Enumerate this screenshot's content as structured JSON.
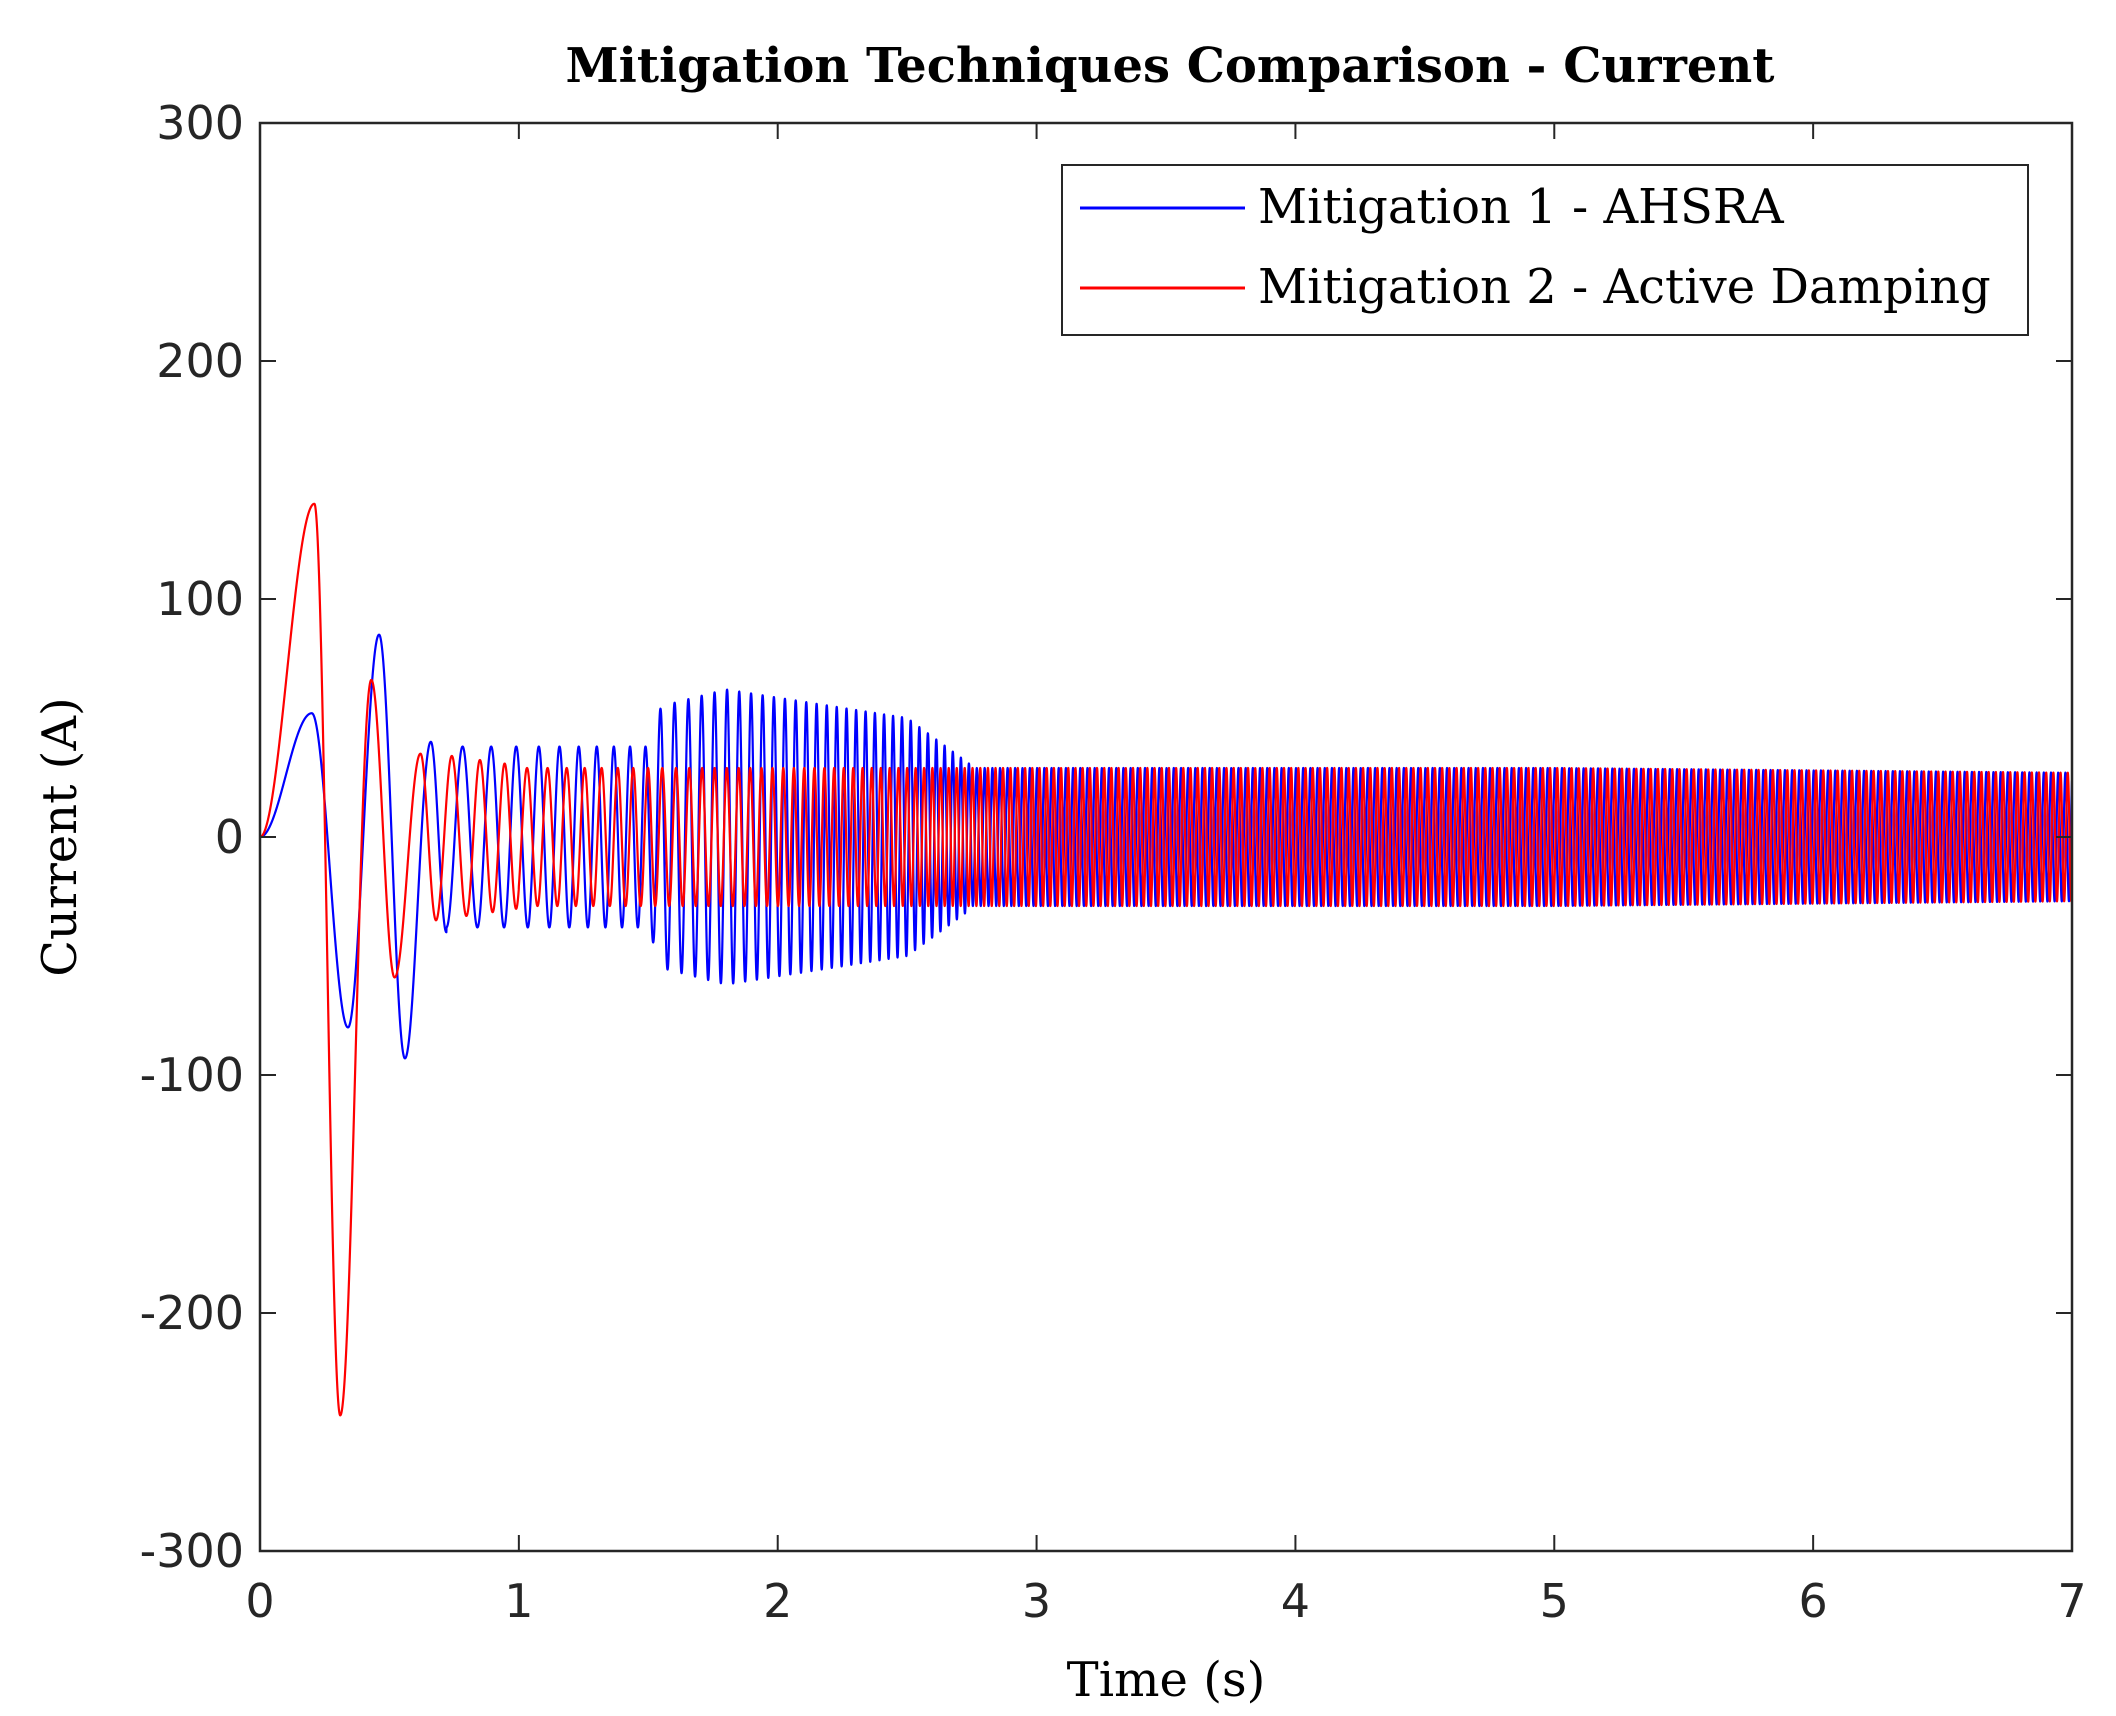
{
  "chart_data": {
    "type": "line",
    "title": "Mitigation Techniques Comparison - Current",
    "xlabel": "Time (s)",
    "ylabel": "Current (A)",
    "xlim": [
      0,
      7
    ],
    "ylim": [
      -300,
      300
    ],
    "xticks": [
      0,
      1,
      2,
      3,
      4,
      5,
      6,
      7
    ],
    "yticks": [
      300,
      200,
      100,
      0,
      -100,
      -200,
      -300
    ],
    "grid": false,
    "legend_position": "top-right",
    "series": [
      {
        "name": "Mitigation 1 - AHSRA",
        "color": "#0000ff",
        "keypoints": [
          {
            "t": 0.0,
            "i": 0
          },
          {
            "t": 0.2,
            "i": 52
          },
          {
            "t": 0.34,
            "i": -80
          },
          {
            "t": 0.46,
            "i": 85
          },
          {
            "t": 0.56,
            "i": -93
          },
          {
            "t": 0.66,
            "i": 40
          },
          {
            "t": 0.72,
            "i": -40
          },
          {
            "t": 1.5,
            "i": -38
          },
          {
            "t": 1.55,
            "i": 55
          },
          {
            "t": 1.8,
            "i": 62
          },
          {
            "t": 2.5,
            "i": 50
          },
          {
            "t": 2.75,
            "i": 30
          },
          {
            "t": 4.9,
            "i": 30
          },
          {
            "t": 5.0,
            "i": 30
          },
          {
            "t": 7.0,
            "i": 27
          }
        ]
      },
      {
        "name": "Mitigation 2 - Active Damping",
        "color": "#ff0000",
        "keypoints": [
          {
            "t": 0.0,
            "i": 0
          },
          {
            "t": 0.21,
            "i": 140
          },
          {
            "t": 0.31,
            "i": -243
          },
          {
            "t": 0.43,
            "i": 66
          },
          {
            "t": 0.52,
            "i": -59
          },
          {
            "t": 0.62,
            "i": 35
          },
          {
            "t": 0.68,
            "i": -35
          },
          {
            "t": 1.0,
            "i": 30
          },
          {
            "t": 5.0,
            "i": 29
          },
          {
            "t": 7.0,
            "i": 27
          }
        ]
      }
    ]
  }
}
